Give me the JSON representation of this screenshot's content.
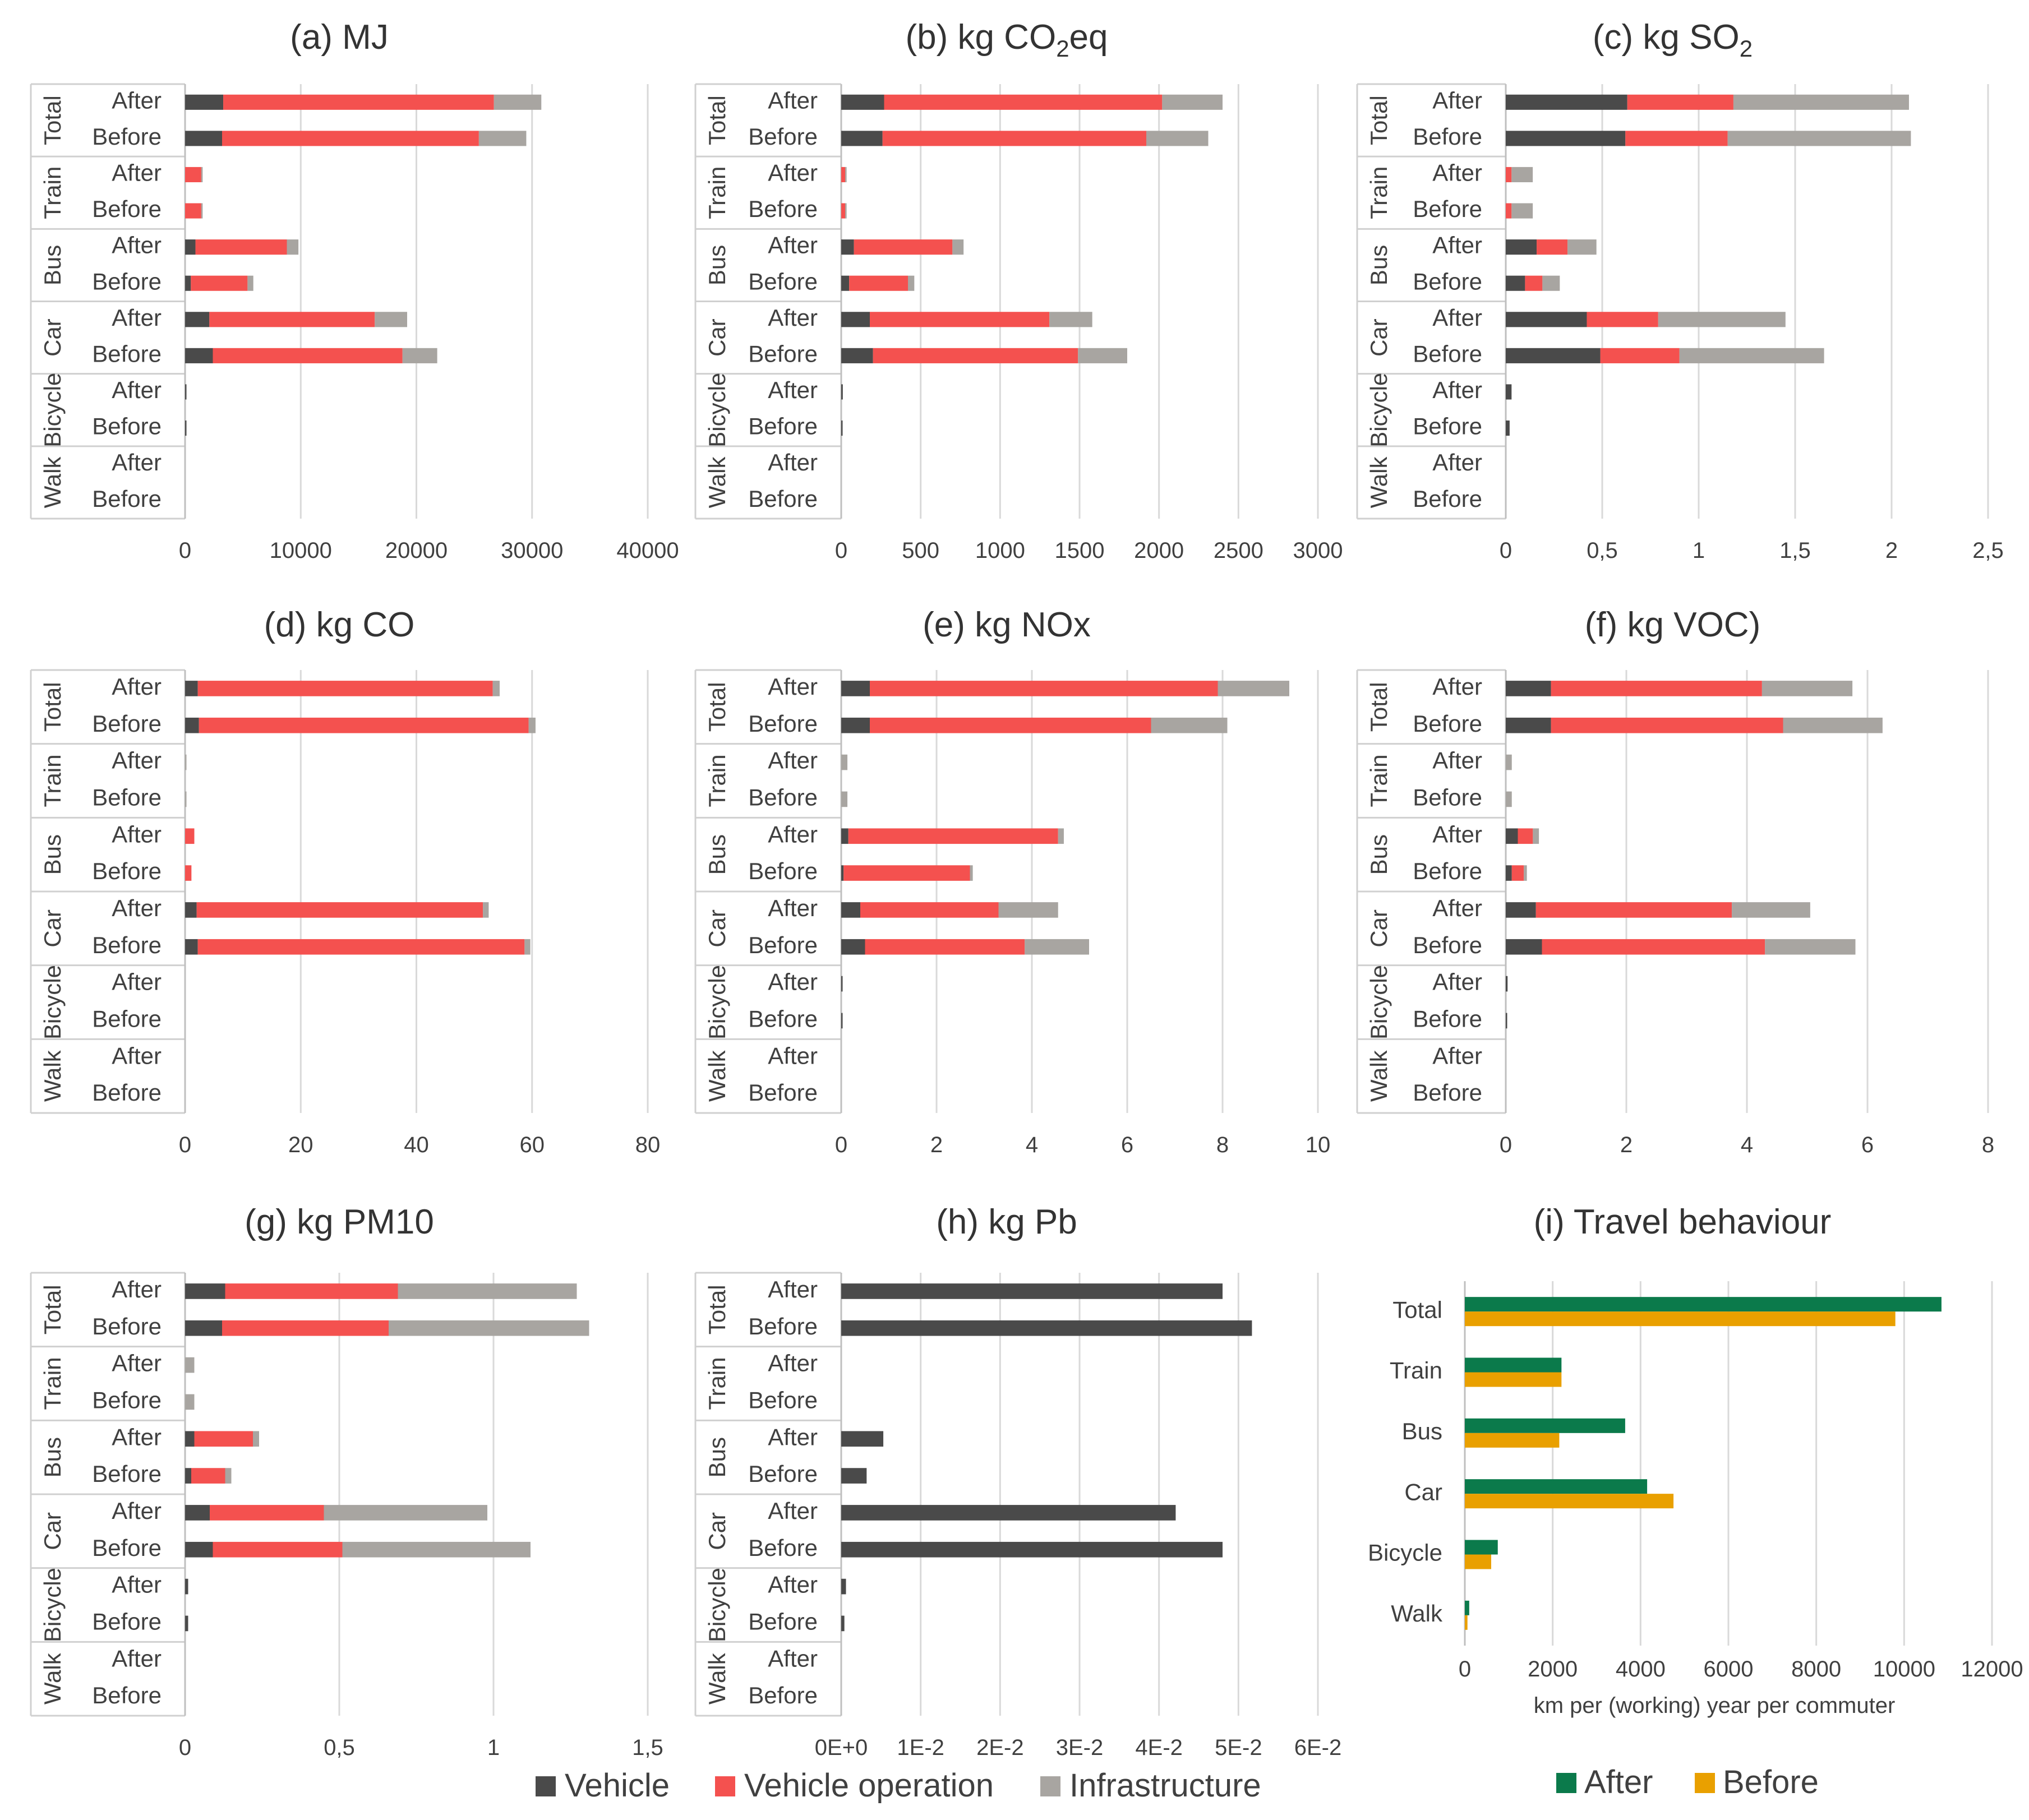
{
  "legend_stacked": [
    {
      "name": "Vehicle",
      "color": "#4a4a4a"
    },
    {
      "name": "Vehicle operation",
      "color": "#f4514f"
    },
    {
      "name": "Infrastructure",
      "color": "#a8a5a1"
    }
  ],
  "legend_travel": [
    {
      "name": "After",
      "color": "#0b7a4b"
    },
    {
      "name": "Before",
      "color": "#e9a000"
    }
  ],
  "groups": [
    "Total",
    "Train",
    "Bus",
    "Car",
    "Bicycle",
    "Walk"
  ],
  "periods": [
    "After",
    "Before"
  ],
  "chart_data": [
    {
      "type": "bar",
      "orientation": "horizontal",
      "stacked": true,
      "title": "(a) MJ",
      "xlim": [
        0,
        40000
      ],
      "xticks": [
        "0",
        "10000",
        "20000",
        "30000",
        "40000"
      ],
      "rows": [
        {
          "group": "Total",
          "period": "After",
          "values": [
            3300,
            23400,
            4100
          ]
        },
        {
          "group": "Total",
          "period": "Before",
          "values": [
            3200,
            22200,
            4100
          ]
        },
        {
          "group": "Train",
          "period": "After",
          "values": [
            0,
            1400,
            100
          ]
        },
        {
          "group": "Train",
          "period": "Before",
          "values": [
            0,
            1400,
            100
          ]
        },
        {
          "group": "Bus",
          "period": "After",
          "values": [
            900,
            7900,
            1000
          ]
        },
        {
          "group": "Bus",
          "period": "Before",
          "values": [
            500,
            4900,
            500
          ]
        },
        {
          "group": "Car",
          "period": "After",
          "values": [
            2100,
            14300,
            2800
          ]
        },
        {
          "group": "Car",
          "period": "Before",
          "values": [
            2400,
            16400,
            3000
          ]
        },
        {
          "group": "Bicycle",
          "period": "After",
          "values": [
            120,
            0,
            0
          ]
        },
        {
          "group": "Bicycle",
          "period": "Before",
          "values": [
            60,
            0,
            0
          ]
        },
        {
          "group": "Walk",
          "period": "After",
          "values": [
            0,
            0,
            0
          ]
        },
        {
          "group": "Walk",
          "period": "Before",
          "values": [
            0,
            0,
            0
          ]
        }
      ]
    },
    {
      "type": "bar",
      "orientation": "horizontal",
      "stacked": true,
      "title_parts": [
        "(b) kg CO",
        "2",
        "eq"
      ],
      "xlim": [
        0,
        3000
      ],
      "xticks": [
        "0",
        "500",
        "1000",
        "1500",
        "2000",
        "2500",
        "3000"
      ],
      "rows": [
        {
          "group": "Total",
          "period": "After",
          "values": [
            270,
            1750,
            380
          ]
        },
        {
          "group": "Total",
          "period": "Before",
          "values": [
            260,
            1660,
            390
          ]
        },
        {
          "group": "Train",
          "period": "After",
          "values": [
            0,
            25,
            5
          ]
        },
        {
          "group": "Train",
          "period": "Before",
          "values": [
            0,
            25,
            5
          ]
        },
        {
          "group": "Bus",
          "period": "After",
          "values": [
            80,
            620,
            70
          ]
        },
        {
          "group": "Bus",
          "period": "Before",
          "values": [
            50,
            370,
            40
          ]
        },
        {
          "group": "Car",
          "period": "After",
          "values": [
            180,
            1130,
            270
          ]
        },
        {
          "group": "Car",
          "period": "Before",
          "values": [
            200,
            1290,
            310
          ]
        },
        {
          "group": "Bicycle",
          "period": "After",
          "values": [
            10,
            0,
            0
          ]
        },
        {
          "group": "Bicycle",
          "period": "Before",
          "values": [
            5,
            0,
            0
          ]
        },
        {
          "group": "Walk",
          "period": "After",
          "values": [
            0,
            0,
            0
          ]
        },
        {
          "group": "Walk",
          "period": "Before",
          "values": [
            0,
            0,
            0
          ]
        }
      ]
    },
    {
      "type": "bar",
      "orientation": "horizontal",
      "stacked": true,
      "title_parts": [
        "(c) kg SO",
        "2",
        ""
      ],
      "xlim": [
        0,
        2.5
      ],
      "xticks": [
        "0",
        "0,5",
        "1",
        "1,5",
        "2",
        "2,5"
      ],
      "rows": [
        {
          "group": "Total",
          "period": "After",
          "values": [
            0.63,
            0.55,
            0.91
          ]
        },
        {
          "group": "Total",
          "period": "Before",
          "values": [
            0.62,
            0.53,
            0.95
          ]
        },
        {
          "group": "Train",
          "period": "After",
          "values": [
            0,
            0.03,
            0.11
          ]
        },
        {
          "group": "Train",
          "period": "Before",
          "values": [
            0,
            0.03,
            0.11
          ]
        },
        {
          "group": "Bus",
          "period": "After",
          "values": [
            0.16,
            0.16,
            0.15
          ]
        },
        {
          "group": "Bus",
          "period": "Before",
          "values": [
            0.1,
            0.09,
            0.09
          ]
        },
        {
          "group": "Car",
          "period": "After",
          "values": [
            0.42,
            0.37,
            0.66
          ]
        },
        {
          "group": "Car",
          "period": "Before",
          "values": [
            0.49,
            0.41,
            0.75
          ]
        },
        {
          "group": "Bicycle",
          "period": "After",
          "values": [
            0.03,
            0,
            0
          ]
        },
        {
          "group": "Bicycle",
          "period": "Before",
          "values": [
            0.02,
            0,
            0
          ]
        },
        {
          "group": "Walk",
          "period": "After",
          "values": [
            0,
            0,
            0
          ]
        },
        {
          "group": "Walk",
          "period": "Before",
          "values": [
            0,
            0,
            0
          ]
        }
      ]
    },
    {
      "type": "bar",
      "orientation": "horizontal",
      "stacked": true,
      "title": "(d) kg CO",
      "xlim": [
        0,
        80
      ],
      "xticks": [
        "0",
        "20",
        "40",
        "60",
        "80"
      ],
      "rows": [
        {
          "group": "Total",
          "period": "After",
          "values": [
            2.2,
            51,
            1.2
          ]
        },
        {
          "group": "Total",
          "period": "Before",
          "values": [
            2.4,
            57,
            1.2
          ]
        },
        {
          "group": "Train",
          "period": "After",
          "values": [
            0,
            0,
            0.1
          ]
        },
        {
          "group": "Train",
          "period": "Before",
          "values": [
            0,
            0,
            0.1
          ]
        },
        {
          "group": "Bus",
          "period": "After",
          "values": [
            0,
            1.6,
            0
          ]
        },
        {
          "group": "Bus",
          "period": "Before",
          "values": [
            0,
            1.1,
            0
          ]
        },
        {
          "group": "Car",
          "period": "After",
          "values": [
            2.0,
            49.5,
            1.0
          ]
        },
        {
          "group": "Car",
          "period": "Before",
          "values": [
            2.2,
            56.5,
            1.0
          ]
        },
        {
          "group": "Bicycle",
          "period": "After",
          "values": [
            0,
            0,
            0
          ]
        },
        {
          "group": "Bicycle",
          "period": "Before",
          "values": [
            0,
            0,
            0
          ]
        },
        {
          "group": "Walk",
          "period": "After",
          "values": [
            0,
            0,
            0
          ]
        },
        {
          "group": "Walk",
          "period": "Before",
          "values": [
            0,
            0,
            0
          ]
        }
      ]
    },
    {
      "type": "bar",
      "orientation": "horizontal",
      "stacked": true,
      "title": "(e) kg NOx",
      "xlim": [
        0,
        10
      ],
      "xticks": [
        "0",
        "2",
        "4",
        "6",
        "8",
        "10"
      ],
      "rows": [
        {
          "group": "Total",
          "period": "After",
          "values": [
            0.6,
            7.3,
            1.5
          ]
        },
        {
          "group": "Total",
          "period": "Before",
          "values": [
            0.6,
            5.9,
            1.6
          ]
        },
        {
          "group": "Train",
          "period": "After",
          "values": [
            0,
            0,
            0.13
          ]
        },
        {
          "group": "Train",
          "period": "Before",
          "values": [
            0,
            0,
            0.13
          ]
        },
        {
          "group": "Bus",
          "period": "After",
          "values": [
            0.15,
            4.4,
            0.12
          ]
        },
        {
          "group": "Bus",
          "period": "Before",
          "values": [
            0.05,
            2.65,
            0.06
          ]
        },
        {
          "group": "Car",
          "period": "After",
          "values": [
            0.4,
            2.9,
            1.25
          ]
        },
        {
          "group": "Car",
          "period": "Before",
          "values": [
            0.5,
            3.35,
            1.35
          ]
        },
        {
          "group": "Bicycle",
          "period": "After",
          "values": [
            0.02,
            0,
            0
          ]
        },
        {
          "group": "Bicycle",
          "period": "Before",
          "values": [
            0.01,
            0,
            0
          ]
        },
        {
          "group": "Walk",
          "period": "After",
          "values": [
            0,
            0,
            0
          ]
        },
        {
          "group": "Walk",
          "period": "Before",
          "values": [
            0,
            0,
            0
          ]
        }
      ]
    },
    {
      "type": "bar",
      "orientation": "horizontal",
      "stacked": true,
      "title": "(f) kg VOC)",
      "xlim": [
        0,
        8
      ],
      "xticks": [
        "0",
        "2",
        "4",
        "6",
        "8"
      ],
      "rows": [
        {
          "group": "Total",
          "period": "After",
          "values": [
            0.75,
            3.5,
            1.5
          ]
        },
        {
          "group": "Total",
          "period": "Before",
          "values": [
            0.75,
            3.85,
            1.65
          ]
        },
        {
          "group": "Train",
          "period": "After",
          "values": [
            0,
            0,
            0.1
          ]
        },
        {
          "group": "Train",
          "period": "Before",
          "values": [
            0,
            0,
            0.1
          ]
        },
        {
          "group": "Bus",
          "period": "After",
          "values": [
            0.2,
            0.25,
            0.1
          ]
        },
        {
          "group": "Bus",
          "period": "Before",
          "values": [
            0.1,
            0.2,
            0.05
          ]
        },
        {
          "group": "Car",
          "period": "After",
          "values": [
            0.5,
            3.25,
            1.3
          ]
        },
        {
          "group": "Car",
          "period": "Before",
          "values": [
            0.6,
            3.7,
            1.5
          ]
        },
        {
          "group": "Bicycle",
          "period": "After",
          "values": [
            0.03,
            0,
            0
          ]
        },
        {
          "group": "Bicycle",
          "period": "Before",
          "values": [
            0.02,
            0,
            0
          ]
        },
        {
          "group": "Walk",
          "period": "After",
          "values": [
            0,
            0,
            0
          ]
        },
        {
          "group": "Walk",
          "period": "Before",
          "values": [
            0,
            0,
            0
          ]
        }
      ]
    },
    {
      "type": "bar",
      "orientation": "horizontal",
      "stacked": true,
      "title": "(g) kg PM10",
      "xlim": [
        0,
        1.5
      ],
      "xticks": [
        "0",
        "0,5",
        "1",
        "1,5"
      ],
      "rows": [
        {
          "group": "Total",
          "period": "After",
          "values": [
            0.13,
            0.56,
            0.58
          ]
        },
        {
          "group": "Total",
          "period": "Before",
          "values": [
            0.12,
            0.54,
            0.65
          ]
        },
        {
          "group": "Train",
          "period": "After",
          "values": [
            0,
            0,
            0.03
          ]
        },
        {
          "group": "Train",
          "period": "Before",
          "values": [
            0,
            0,
            0.03
          ]
        },
        {
          "group": "Bus",
          "period": "After",
          "values": [
            0.03,
            0.19,
            0.02
          ]
        },
        {
          "group": "Bus",
          "period": "Before",
          "values": [
            0.02,
            0.11,
            0.02
          ]
        },
        {
          "group": "Car",
          "period": "After",
          "values": [
            0.08,
            0.37,
            0.53
          ]
        },
        {
          "group": "Car",
          "period": "Before",
          "values": [
            0.09,
            0.42,
            0.61
          ]
        },
        {
          "group": "Bicycle",
          "period": "After",
          "values": [
            0.01,
            0,
            0
          ]
        },
        {
          "group": "Bicycle",
          "period": "Before",
          "values": [
            0.01,
            0,
            0
          ]
        },
        {
          "group": "Walk",
          "period": "After",
          "values": [
            0,
            0,
            0
          ]
        },
        {
          "group": "Walk",
          "period": "Before",
          "values": [
            0,
            0,
            0
          ]
        }
      ]
    },
    {
      "type": "bar",
      "orientation": "horizontal",
      "stacked": true,
      "title": "(h) kg Pb",
      "xlim": [
        0,
        0.06
      ],
      "xticks": [
        "0E+0",
        "1E-2",
        "2E-2",
        "3E-2",
        "4E-2",
        "5E-2",
        "6E-2"
      ],
      "rows": [
        {
          "group": "Total",
          "period": "After",
          "values": [
            0.048,
            0,
            0
          ]
        },
        {
          "group": "Total",
          "period": "Before",
          "values": [
            0.0517,
            0,
            0
          ]
        },
        {
          "group": "Train",
          "period": "After",
          "values": [
            0,
            0,
            0
          ]
        },
        {
          "group": "Train",
          "period": "Before",
          "values": [
            0,
            0,
            0
          ]
        },
        {
          "group": "Bus",
          "period": "After",
          "values": [
            0.0053,
            0,
            0
          ]
        },
        {
          "group": "Bus",
          "period": "Before",
          "values": [
            0.0032,
            0,
            0
          ]
        },
        {
          "group": "Car",
          "period": "After",
          "values": [
            0.0421,
            0,
            0
          ]
        },
        {
          "group": "Car",
          "period": "Before",
          "values": [
            0.048,
            0,
            0
          ]
        },
        {
          "group": "Bicycle",
          "period": "After",
          "values": [
            0.0006,
            0,
            0
          ]
        },
        {
          "group": "Bicycle",
          "period": "Before",
          "values": [
            0.0004,
            0,
            0
          ]
        },
        {
          "group": "Walk",
          "period": "After",
          "values": [
            0,
            0,
            0
          ]
        },
        {
          "group": "Walk",
          "period": "Before",
          "values": [
            0,
            0,
            0
          ]
        }
      ]
    },
    {
      "type": "bar",
      "orientation": "horizontal",
      "stacked": false,
      "title": "(i) Travel behaviour",
      "xlabel": "km per (working) year per commuter",
      "xlim": [
        0,
        12000
      ],
      "xticks": [
        "0",
        "2000",
        "4000",
        "6000",
        "8000",
        "10000",
        "12000"
      ],
      "categories": [
        "Total",
        "Train",
        "Bus",
        "Car",
        "Bicycle",
        "Walk"
      ],
      "series": [
        {
          "name": "After",
          "values": [
            10850,
            2200,
            3650,
            4150,
            750,
            100
          ]
        },
        {
          "name": "Before",
          "values": [
            9800,
            2200,
            2150,
            4750,
            600,
            60
          ]
        }
      ]
    }
  ]
}
